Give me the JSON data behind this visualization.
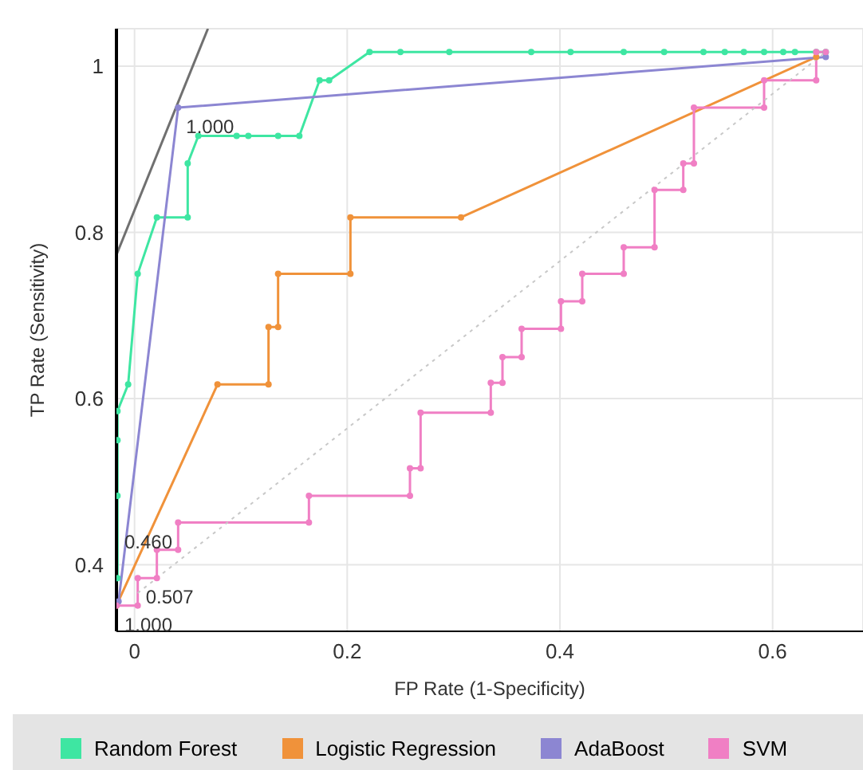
{
  "chart_data": {
    "type": "line",
    "xlabel": "FP Rate (1-Specificity)",
    "ylabel": "TP Rate (Sensitivity)",
    "xlim": [
      -0.017,
      0.685
    ],
    "ylim": [
      0.32,
      1.045
    ],
    "xticks": [
      0,
      0.2,
      0.4,
      0.6
    ],
    "yticks": [
      0.4,
      0.6,
      0.8,
      1
    ],
    "grid": true,
    "legend": "bottom",
    "marker": "circle",
    "line_style": "solid",
    "series": [
      {
        "name": "Random Forest",
        "color": "#3ee6a2",
        "x": [
          -0.016,
          -0.016,
          -0.016,
          -0.016,
          -0.006,
          0.003,
          0.021,
          0.05,
          0.05,
          0.06,
          0.096,
          0.107,
          0.135,
          0.155,
          0.174,
          0.183,
          0.221,
          0.25,
          0.296,
          0.373,
          0.41,
          0.46,
          0.498,
          0.535,
          0.555,
          0.573,
          0.592,
          0.61,
          0.621,
          0.641,
          0.65
        ],
        "values": [
          0.384,
          0.483,
          0.55,
          0.585,
          0.617,
          0.75,
          0.818,
          0.818,
          0.883,
          0.916,
          0.916,
          0.916,
          0.916,
          0.916,
          0.983,
          0.983,
          1.017,
          1.017,
          1.017,
          1.017,
          1.017,
          1.017,
          1.017,
          1.017,
          1.017,
          1.017,
          1.017,
          1.017,
          1.017,
          1.017,
          1.017
        ]
      },
      {
        "name": "Logistic Regression",
        "color": "#f0923a",
        "x": [
          -0.017,
          0.078,
          0.126,
          0.126,
          0.135,
          0.135,
          0.203,
          0.203,
          0.307,
          0.641
        ],
        "values": [
          0.351,
          0.617,
          0.617,
          0.686,
          0.686,
          0.75,
          0.75,
          0.818,
          0.818,
          1.011
        ]
      },
      {
        "name": "AdaBoost",
        "color": "#8c86d2",
        "x": [
          -0.015,
          0.041,
          0.65
        ],
        "values": [
          0.356,
          0.95,
          1.011
        ]
      },
      {
        "name": "SVM",
        "color": "#f07fc4",
        "x": [
          -0.017,
          0.003,
          0.003,
          0.021,
          0.021,
          0.041,
          0.041,
          0.164,
          0.164,
          0.259,
          0.259,
          0.269,
          0.269,
          0.335,
          0.335,
          0.346,
          0.346,
          0.364,
          0.364,
          0.401,
          0.401,
          0.421,
          0.421,
          0.46,
          0.46,
          0.489,
          0.489,
          0.516,
          0.516,
          0.526,
          0.526,
          0.592,
          0.592,
          0.641,
          0.641,
          0.65
        ],
        "values": [
          0.351,
          0.351,
          0.384,
          0.384,
          0.418,
          0.418,
          0.451,
          0.451,
          0.483,
          0.483,
          0.516,
          0.516,
          0.583,
          0.583,
          0.619,
          0.619,
          0.65,
          0.65,
          0.684,
          0.684,
          0.717,
          0.717,
          0.75,
          0.75,
          0.782,
          0.782,
          0.851,
          0.851,
          0.883,
          0.883,
          0.95,
          0.95,
          0.983,
          0.983,
          1.017,
          1.017
        ]
      },
      {
        "type": "line",
        "color": "#c8c8c8",
        "line_style": "dotted",
        "marker": "none",
        "x": [
          0.003,
          0.65
        ],
        "values": [
          0.366,
          1.017
        ]
      },
      {
        "type": "line",
        "color": "#707070",
        "marker": "none",
        "x": [
          -0.017,
          0.069
        ],
        "values": [
          0.773,
          1.045
        ]
      }
    ],
    "annotations": [
      {
        "text": "1.000",
        "x": 0.041,
        "y": 0.95
      },
      {
        "text": "0.460",
        "x": -0.017,
        "y": 0.45
      },
      {
        "text": "0.507",
        "x": 0.003,
        "y": 0.384
      },
      {
        "text": "1.000",
        "x": -0.017,
        "y": 0.351
      }
    ]
  }
}
